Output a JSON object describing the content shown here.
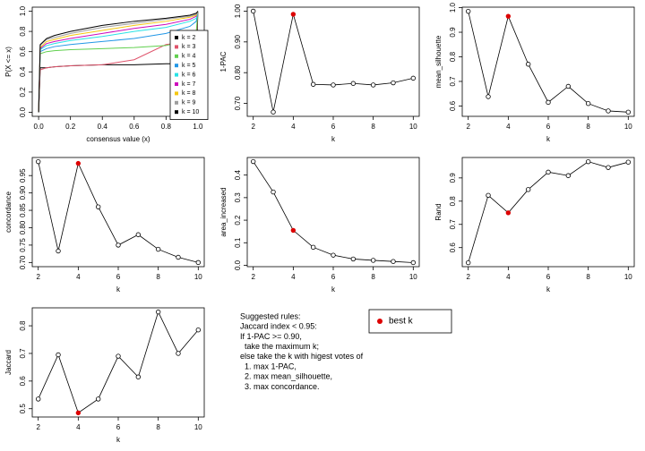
{
  "chart_data": [
    {
      "type": "ecdf",
      "xlabel": "consensus value (x)",
      "ylabel": "P(X <= x)",
      "x": [
        0,
        0.01,
        0.05,
        0.1,
        0.2,
        0.4,
        0.6,
        0.8,
        0.95,
        0.99,
        1.0
      ],
      "xlim": [
        -0.04,
        1.04
      ],
      "ylim": [
        -0.04,
        1.04
      ],
      "xticks": [
        {
          "value": 0,
          "label": "0.0"
        },
        0.2,
        0.4,
        0.6,
        0.8,
        {
          "value": 1,
          "label": "1.0"
        }
      ],
      "yticks": [
        {
          "value": 0,
          "label": "0.0"
        },
        0.2,
        0.4,
        0.6,
        0.8,
        {
          "value": 1,
          "label": "1.0"
        }
      ],
      "series": [
        {
          "name": "k = 2",
          "color": "#000000",
          "values": [
            0,
            0.44,
            0.44,
            0.45,
            0.46,
            0.47,
            0.47,
            0.48,
            0.48,
            0.48,
            1.0
          ]
        },
        {
          "name": "k = 3",
          "color": "#df536b",
          "values": [
            0,
            0.42,
            0.44,
            0.45,
            0.46,
            0.47,
            0.52,
            0.67,
            0.7,
            0.72,
            1.0
          ]
        },
        {
          "name": "k = 4",
          "color": "#61d04f",
          "values": [
            0,
            0.58,
            0.6,
            0.61,
            0.62,
            0.63,
            0.64,
            0.66,
            0.72,
            0.8,
            1.0
          ]
        },
        {
          "name": "k = 5",
          "color": "#2297e6",
          "values": [
            0,
            0.6,
            0.63,
            0.65,
            0.67,
            0.7,
            0.73,
            0.78,
            0.85,
            0.9,
            1.0
          ]
        },
        {
          "name": "k = 6",
          "color": "#28e2e5",
          "values": [
            0,
            0.62,
            0.66,
            0.68,
            0.71,
            0.75,
            0.8,
            0.84,
            0.9,
            0.93,
            1.0
          ]
        },
        {
          "name": "k = 7",
          "color": "#cd0bbc",
          "values": [
            0,
            0.63,
            0.68,
            0.7,
            0.73,
            0.78,
            0.83,
            0.87,
            0.92,
            0.95,
            1.0
          ]
        },
        {
          "name": "k = 8",
          "color": "#f5c710",
          "values": [
            0,
            0.64,
            0.7,
            0.72,
            0.76,
            0.81,
            0.86,
            0.9,
            0.94,
            0.96,
            1.0
          ]
        },
        {
          "name": "k = 9",
          "color": "#9e9e9e",
          "values": [
            0,
            0.66,
            0.72,
            0.74,
            0.78,
            0.84,
            0.88,
            0.92,
            0.95,
            0.97,
            1.0
          ]
        },
        {
          "name": "k = 10",
          "color": "#000000",
          "values": [
            0,
            0.67,
            0.73,
            0.76,
            0.8,
            0.86,
            0.9,
            0.93,
            0.96,
            0.98,
            1.0
          ]
        }
      ]
    },
    {
      "type": "line",
      "xlabel": "k",
      "ylabel": "1-PAC",
      "x": [
        2,
        3,
        4,
        5,
        6,
        7,
        8,
        9,
        10
      ],
      "values": [
        1.0,
        0.672,
        0.99,
        0.762,
        0.76,
        0.765,
        0.76,
        0.767,
        0.782
      ],
      "xlim": [
        1.7,
        10.3
      ],
      "xticks": [
        2,
        4,
        6,
        8,
        10
      ],
      "ylim": [
        0.658,
        1.013
      ],
      "yticks": [
        {
          "value": 0.7,
          "label": "0.70"
        },
        {
          "value": 0.8,
          "label": "0.80"
        },
        {
          "value": 0.9,
          "label": "0.90"
        },
        {
          "value": 1,
          "label": "1.00"
        }
      ]
    },
    {
      "type": "line",
      "xlabel": "k",
      "ylabel": "mean_silhouette",
      "x": [
        2,
        3,
        4,
        5,
        6,
        7,
        8,
        9,
        10
      ],
      "values": [
        0.985,
        0.638,
        0.965,
        0.77,
        0.615,
        0.68,
        0.61,
        0.58,
        0.575
      ],
      "xlim": [
        1.7,
        10.3
      ],
      "xticks": [
        2,
        4,
        6,
        8,
        10
      ],
      "ylim": [
        0.558,
        1.002
      ],
      "yticks": [
        0.6,
        0.7,
        0.8,
        0.9,
        {
          "value": 1,
          "label": "1.0"
        }
      ]
    },
    {
      "type": "line",
      "xlabel": "k",
      "ylabel": "concordance",
      "x": [
        2,
        3,
        4,
        5,
        6,
        7,
        8,
        9,
        10
      ],
      "values": [
        0.99,
        0.733,
        0.985,
        0.86,
        0.75,
        0.78,
        0.738,
        0.715,
        0.7
      ],
      "xlim": [
        1.7,
        10.3
      ],
      "xticks": [
        2,
        4,
        6,
        8,
        10
      ],
      "ylim": [
        0.688,
        1.002
      ],
      "yticks": [
        {
          "value": 0.7,
          "label": "0.70"
        },
        0.75,
        {
          "value": 0.8,
          "label": "0.80"
        },
        0.85,
        {
          "value": 0.9,
          "label": "0.90"
        },
        0.95
      ]
    },
    {
      "type": "line",
      "xlabel": "k",
      "ylabel": "area_increased",
      "x": [
        2,
        3,
        4,
        5,
        6,
        7,
        8,
        9,
        10
      ],
      "values": [
        0.46,
        0.325,
        0.155,
        0.08,
        0.045,
        0.028,
        0.022,
        0.017,
        0.012
      ],
      "xlim": [
        1.7,
        10.3
      ],
      "xticks": [
        2,
        4,
        6,
        8,
        10
      ],
      "ylim": [
        -0.006,
        0.478
      ],
      "yticks": [
        {
          "value": 0,
          "label": "0.0"
        },
        0.1,
        0.2,
        0.3,
        0.4
      ]
    },
    {
      "type": "line",
      "xlabel": "k",
      "ylabel": "Rand",
      "x": [
        2,
        3,
        4,
        5,
        6,
        7,
        8,
        9,
        10
      ],
      "values": [
        0.535,
        0.825,
        0.75,
        0.85,
        0.925,
        0.91,
        0.97,
        0.945,
        0.968
      ],
      "xlim": [
        1.7,
        10.3
      ],
      "xticks": [
        2,
        4,
        6,
        8,
        10
      ],
      "ylim": [
        0.518,
        0.988
      ],
      "yticks": [
        0.6,
        0.7,
        0.8,
        0.9
      ]
    },
    {
      "type": "line",
      "xlabel": "k",
      "ylabel": "Jaccard",
      "x": [
        2,
        3,
        4,
        5,
        6,
        7,
        8,
        9,
        10
      ],
      "values": [
        0.535,
        0.695,
        0.485,
        0.535,
        0.69,
        0.615,
        0.85,
        0.7,
        0.785
      ],
      "xlim": [
        1.7,
        10.3
      ],
      "xticks": [
        2,
        4,
        6,
        8,
        10
      ],
      "ylim": [
        0.47,
        0.865
      ],
      "yticks": [
        0.5,
        0.6,
        0.7,
        0.8
      ]
    }
  ],
  "best_k": 4,
  "best_color": "#dd0000",
  "legend": {
    "label": "best k"
  },
  "rules": [
    "Suggested rules:",
    "Jaccard index < 0.95:",
    "If 1-PAC >= 0.90,",
    "  take the maximum k;",
    "else take the k with higest votes of",
    "  1. max 1-PAC,",
    "  2. max mean_silhouette,",
    "  3. max concordance."
  ]
}
